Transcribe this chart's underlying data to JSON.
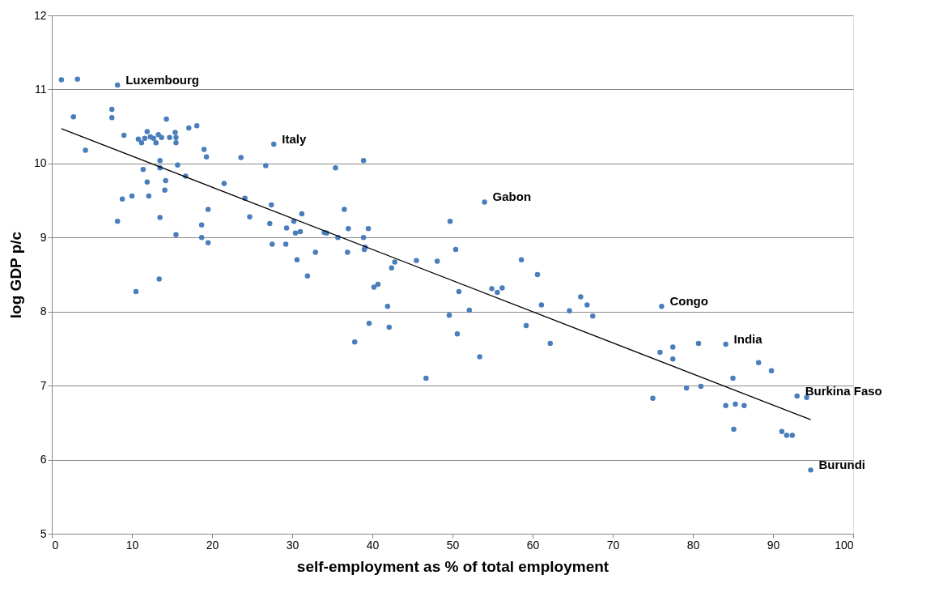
{
  "chart_data": {
    "type": "scatter",
    "xlabel": "self-employment as % of total employment",
    "ylabel": "log GDP p/c",
    "xlim": [
      0,
      100
    ],
    "xticks": [
      0,
      10,
      20,
      30,
      40,
      50,
      60,
      70,
      80,
      90,
      100
    ],
    "ylim": [
      5,
      12
    ],
    "yticks": [
      5,
      6,
      7,
      8,
      9,
      10,
      11,
      12
    ],
    "grid": "y",
    "marker": "circle",
    "series": [
      {
        "color": "#4a7ebb",
        "x": [
          1.2,
          3.2,
          8.2,
          2.7,
          4.2,
          7.5,
          7.5,
          9.0,
          8.2,
          8.8,
          10.0,
          10.5,
          10.8,
          11.2,
          11.4,
          11.6,
          11.9,
          11.9,
          12.1,
          12.3,
          12.7,
          13.0,
          13.3,
          13.4,
          13.5,
          13.5,
          13.5,
          13.7,
          14.1,
          14.2,
          14.3,
          14.7,
          15.4,
          15.5,
          15.5,
          15.5,
          15.7,
          16.7,
          17.1,
          18.1,
          18.7,
          18.7,
          19.0,
          19.3,
          19.5,
          19.5,
          21.5,
          23.6,
          24.1,
          24.7,
          26.7,
          27.2,
          27.4,
          27.5,
          27.7,
          29.2,
          29.3,
          30.2,
          30.4,
          30.6,
          31.0,
          31.2,
          31.9,
          32.9,
          34.0,
          34.3,
          35.4,
          35.7,
          36.5,
          36.9,
          37.0,
          37.8,
          38.9,
          38.9,
          39.0,
          39.1,
          39.5,
          39.6,
          40.2,
          40.7,
          41.9,
          42.1,
          42.4,
          42.8,
          45.5,
          46.7,
          48.1,
          49.6,
          49.7,
          50.4,
          50.6,
          50.8,
          52.1,
          53.4,
          54.0,
          54.9,
          55.6,
          56.2,
          58.6,
          59.2,
          60.6,
          61.1,
          62.2,
          64.6,
          66.0,
          66.8,
          67.5,
          75.0,
          75.9,
          76.1,
          77.5,
          77.5,
          79.2,
          80.7,
          81.0,
          84.1,
          84.1,
          85.0,
          85.1,
          85.3,
          86.4,
          88.2,
          89.8,
          91.1,
          91.7,
          92.4,
          93.0,
          94.2,
          94.7
        ],
        "values": [
          11.13,
          11.14,
          11.06,
          10.63,
          10.18,
          10.73,
          10.62,
          10.38,
          9.22,
          9.52,
          9.56,
          8.27,
          10.33,
          10.28,
          9.92,
          10.34,
          10.43,
          9.75,
          9.56,
          10.36,
          10.34,
          10.28,
          10.39,
          8.44,
          9.94,
          10.04,
          9.27,
          10.35,
          9.64,
          9.77,
          10.6,
          10.35,
          10.42,
          10.35,
          10.28,
          9.04,
          9.98,
          9.83,
          10.48,
          10.51,
          9.17,
          9.0,
          10.19,
          10.09,
          9.38,
          8.93,
          9.73,
          10.08,
          9.53,
          9.28,
          9.97,
          9.19,
          9.44,
          8.91,
          10.26,
          8.91,
          9.13,
          9.22,
          9.06,
          8.7,
          9.08,
          9.32,
          8.48,
          8.8,
          9.07,
          9.06,
          9.94,
          9.0,
          9.38,
          8.8,
          9.12,
          7.59,
          10.04,
          9.0,
          8.84,
          8.87,
          9.12,
          7.84,
          8.33,
          8.37,
          8.07,
          7.79,
          8.59,
          8.67,
          8.69,
          7.1,
          8.68,
          7.95,
          9.22,
          8.84,
          7.7,
          8.27,
          8.02,
          7.39,
          9.48,
          8.31,
          8.26,
          8.32,
          8.7,
          7.81,
          8.5,
          8.09,
          7.57,
          8.01,
          8.2,
          8.09,
          7.94,
          6.83,
          7.45,
          8.07,
          7.52,
          7.36,
          6.97,
          7.57,
          6.99,
          7.56,
          6.73,
          7.1,
          6.41,
          6.75,
          6.73,
          7.31,
          7.2,
          6.38,
          6.33,
          6.33,
          6.86,
          6.84,
          5.86
        ]
      },
      {
        "type": "line",
        "color": "#000000",
        "marker": "none",
        "line_style": "solid",
        "x": [
          1.2,
          94.7
        ],
        "values": [
          10.47,
          6.54
        ]
      }
    ],
    "annotations": [
      {
        "text": "Luxembourg",
        "x": 8.2,
        "y": 11.06
      },
      {
        "text": "Italy",
        "x": 27.7,
        "y": 10.26
      },
      {
        "text": "Gabon",
        "x": 54.0,
        "y": 9.48
      },
      {
        "text": "Congo",
        "x": 76.1,
        "y": 8.07
      },
      {
        "text": "India",
        "x": 84.1,
        "y": 7.56
      },
      {
        "text": "Burkina Faso",
        "x": 93.0,
        "y": 6.86
      },
      {
        "text": "Burundi",
        "x": 94.7,
        "y": 5.86
      }
    ]
  }
}
